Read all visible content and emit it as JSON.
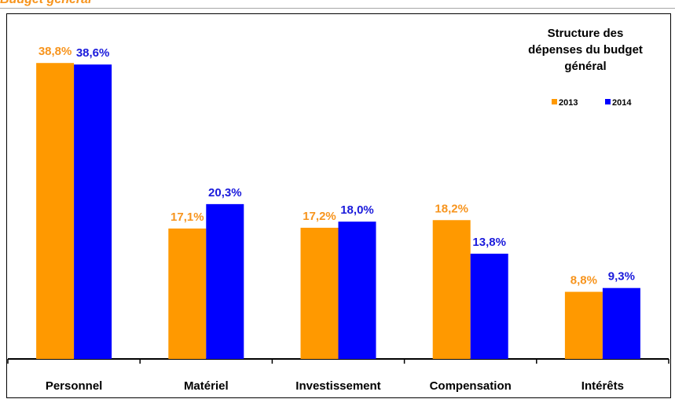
{
  "header": {
    "cropped_text": "Budget général"
  },
  "chart_data": {
    "type": "bar",
    "title_lines": [
      "Structure des",
      "dépenses du budget",
      "général"
    ],
    "categories": [
      "Personnel",
      "Matériel",
      "Investissement",
      "Compensation",
      "Intérêts"
    ],
    "series": [
      {
        "name": "2013",
        "color": "#ff9900",
        "values": [
          38.8,
          17.1,
          17.2,
          18.2,
          8.8
        ],
        "labels": [
          "38,8%",
          "17,1%",
          "17,2%",
          "18,2%",
          "8,8%"
        ]
      },
      {
        "name": "2014",
        "color": "#0000ff",
        "values": [
          38.6,
          20.3,
          18.0,
          13.8,
          9.3
        ],
        "labels": [
          "38,6%",
          "20,3%",
          "18,0%",
          "13,8%",
          "9,3%"
        ]
      }
    ],
    "label_colors": {
      "2013": "#f7941d",
      "2014": "#1a1adb"
    },
    "ylim": [
      0,
      45
    ],
    "grid": false,
    "legend_position": "top-right"
  }
}
